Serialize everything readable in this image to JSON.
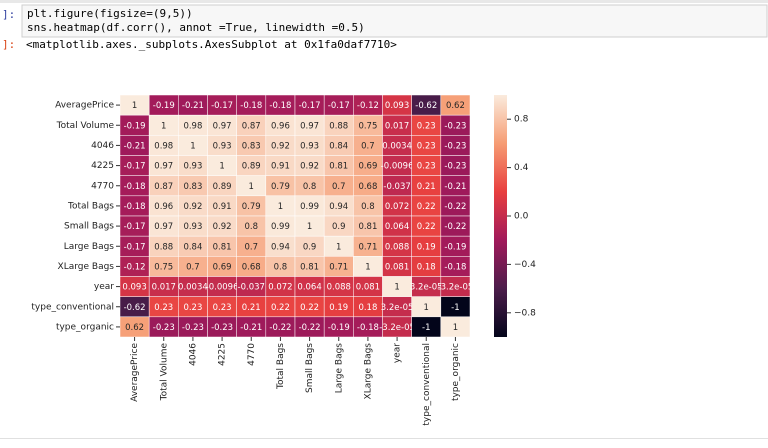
{
  "notebook": {
    "input_prompt": "]:",
    "code": [
      "plt.figure(figsize=(9,5))",
      "sns.heatmap(df.corr(), annot =True, linewidth =0.5)"
    ],
    "output_prompt": "]:",
    "output": "<matplotlib.axes._subplots.AxesSubplot at 0x1fa0daf7710>"
  },
  "chart_data": {
    "type": "heatmap",
    "categories": [
      "AveragePrice",
      "Total Volume",
      "4046",
      "4225",
      "4770",
      "Total Bags",
      "Small Bags",
      "Large Bags",
      "XLarge Bags",
      "year",
      "type_conventional",
      "type_organic"
    ],
    "values": [
      [
        1,
        -0.19,
        -0.21,
        -0.17,
        -0.18,
        -0.18,
        -0.17,
        -0.17,
        -0.12,
        0.093,
        -0.62,
        0.62
      ],
      [
        -0.19,
        1,
        0.98,
        0.97,
        0.87,
        0.96,
        0.97,
        0.88,
        0.75,
        0.017,
        0.23,
        -0.23
      ],
      [
        -0.21,
        0.98,
        1,
        0.93,
        0.83,
        0.92,
        0.93,
        0.84,
        0.7,
        0.0034,
        0.23,
        -0.23
      ],
      [
        -0.17,
        0.97,
        0.93,
        1,
        0.89,
        0.91,
        0.92,
        0.81,
        0.69,
        -0.0096,
        0.23,
        -0.23
      ],
      [
        -0.18,
        0.87,
        0.83,
        0.89,
        1,
        0.79,
        0.8,
        0.7,
        0.68,
        -0.037,
        0.21,
        -0.21
      ],
      [
        -0.18,
        0.96,
        0.92,
        0.91,
        0.79,
        1,
        0.99,
        0.94,
        0.8,
        0.072,
        0.22,
        -0.22
      ],
      [
        -0.17,
        0.97,
        0.93,
        0.92,
        0.8,
        0.99,
        1,
        0.9,
        0.81,
        0.064,
        0.22,
        -0.22
      ],
      [
        -0.17,
        0.88,
        0.84,
        0.81,
        0.7,
        0.94,
        0.9,
        1,
        0.71,
        0.088,
        0.19,
        -0.19
      ],
      [
        -0.12,
        0.75,
        0.7,
        0.69,
        0.68,
        0.8,
        0.81,
        0.71,
        1,
        0.081,
        0.18,
        -0.18
      ],
      [
        0.093,
        0.017,
        0.0034,
        -0.0096,
        -0.037,
        0.072,
        0.064,
        0.088,
        0.081,
        1,
        3.2e-05,
        -3.2e-05
      ],
      [
        -0.62,
        0.23,
        0.23,
        0.23,
        0.21,
        0.22,
        0.22,
        0.19,
        0.18,
        3.2e-05,
        1,
        -1
      ],
      [
        0.62,
        -0.23,
        -0.23,
        -0.23,
        -0.21,
        -0.22,
        -0.22,
        -0.19,
        -0.18,
        -3.2e-05,
        -1,
        1
      ]
    ],
    "value_labels": [
      [
        null,
        null,
        null,
        null,
        null,
        null,
        null,
        null,
        null,
        null,
        null,
        null
      ],
      [
        null,
        null,
        null,
        null,
        null,
        null,
        null,
        null,
        null,
        null,
        null,
        null
      ],
      [
        null,
        null,
        null,
        null,
        null,
        null,
        null,
        null,
        null,
        null,
        null,
        null
      ],
      [
        null,
        null,
        null,
        null,
        null,
        null,
        null,
        null,
        null,
        null,
        null,
        null
      ],
      [
        null,
        null,
        null,
        null,
        null,
        null,
        null,
        null,
        null,
        null,
        null,
        null
      ],
      [
        null,
        null,
        null,
        null,
        null,
        null,
        null,
        null,
        null,
        null,
        null,
        null
      ],
      [
        null,
        null,
        null,
        null,
        null,
        null,
        null,
        null,
        null,
        null,
        null,
        null
      ],
      [
        null,
        null,
        null,
        null,
        null,
        null,
        null,
        null,
        null,
        null,
        null,
        null
      ],
      [
        null,
        null,
        null,
        null,
        null,
        null,
        null,
        null,
        null,
        null,
        null,
        null
      ],
      [
        null,
        null,
        null,
        null,
        null,
        null,
        null,
        null,
        null,
        null,
        "3.2e-05",
        "-3.2e-05"
      ],
      [
        null,
        null,
        null,
        null,
        null,
        null,
        null,
        null,
        null,
        "3.2e-05",
        null,
        null
      ],
      [
        null,
        null,
        null,
        null,
        null,
        null,
        null,
        null,
        null,
        "-3.2e-05",
        null,
        null
      ]
    ],
    "colormap": [
      "#03051a",
      "#4c1d4b",
      "#a11a5b",
      "#e83f3f",
      "#f69c73",
      "#faebdd"
    ],
    "clim": [
      -1,
      1
    ],
    "cticks": [
      {
        "value": 0.8,
        "label": "0.8"
      },
      {
        "value": 0.4,
        "label": "0.4"
      },
      {
        "value": 0,
        "label": "0.0"
      },
      {
        "value": -0.4,
        "label": "−0.4"
      },
      {
        "value": -0.8,
        "label": "−0.8"
      }
    ]
  }
}
